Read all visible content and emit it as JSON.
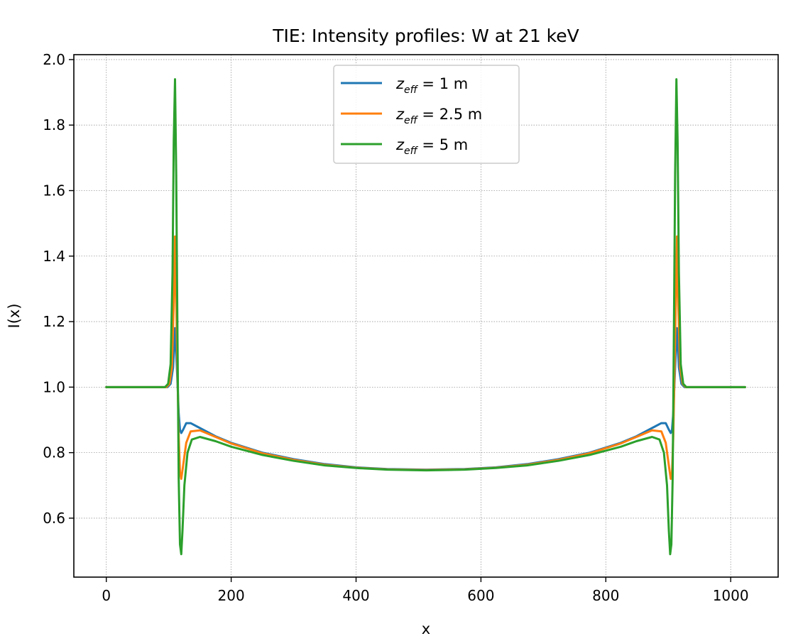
{
  "chart_data": {
    "type": "line",
    "title": "TIE: Intensity profiles: W at 21 keV",
    "xlabel": "x",
    "ylabel": "I(x)",
    "xlim": [
      -52,
      1076
    ],
    "ylim": [
      0.42,
      2.015
    ],
    "xticks": [
      0,
      200,
      400,
      600,
      800,
      1000
    ],
    "xtick_labels": [
      "0",
      "200",
      "400",
      "600",
      "800",
      "1000"
    ],
    "yticks": [
      0.6,
      0.8,
      1.0,
      1.2,
      1.4,
      1.6,
      1.8,
      2.0
    ],
    "ytick_labels": [
      "0.6",
      "0.8",
      "1.0",
      "1.2",
      "1.4",
      "1.6",
      "1.8",
      "2.0"
    ],
    "grid": true,
    "legend_position": "upper center",
    "series": [
      {
        "name": "z_eff = 1 m",
        "legend_main": "z",
        "legend_sub": "eff",
        "legend_rest": " = 1 m",
        "color": "#1f77b4",
        "x": [
          0,
          98,
          103,
          107,
          110,
          113,
          116,
          118,
          120,
          123,
          128,
          135,
          150,
          175,
          200,
          250,
          300,
          350,
          400,
          450,
          512,
          574,
          624,
          674,
          724,
          774,
          824,
          849,
          874,
          889,
          896,
          901,
          904,
          906,
          908,
          911,
          914,
          917,
          921,
          926,
          1023
        ],
        "y": [
          1.0,
          1.0,
          1.01,
          1.06,
          1.18,
          1.06,
          0.92,
          0.87,
          0.86,
          0.87,
          0.89,
          0.89,
          0.875,
          0.85,
          0.83,
          0.8,
          0.78,
          0.765,
          0.755,
          0.75,
          0.748,
          0.75,
          0.755,
          0.765,
          0.78,
          0.8,
          0.83,
          0.85,
          0.875,
          0.89,
          0.89,
          0.87,
          0.86,
          0.87,
          0.92,
          1.06,
          1.18,
          1.06,
          1.01,
          1.0,
          1.0
        ]
      },
      {
        "name": "z_eff = 2.5 m",
        "legend_main": "z",
        "legend_sub": "eff",
        "legend_rest": " = 2.5 m",
        "color": "#ff7f0e",
        "x": [
          0,
          96,
          101,
          105,
          108,
          110,
          113,
          116,
          118,
          120,
          123,
          128,
          135,
          150,
          175,
          200,
          250,
          300,
          350,
          400,
          450,
          512,
          574,
          624,
          674,
          724,
          774,
          824,
          849,
          874,
          889,
          896,
          901,
          904,
          906,
          908,
          911,
          914,
          916,
          919,
          923,
          928,
          1023
        ],
        "y": [
          1.0,
          1.0,
          1.01,
          1.06,
          1.25,
          1.46,
          1.15,
          0.85,
          0.74,
          0.72,
          0.76,
          0.83,
          0.865,
          0.868,
          0.848,
          0.828,
          0.798,
          0.778,
          0.763,
          0.754,
          0.749,
          0.747,
          0.749,
          0.754,
          0.763,
          0.778,
          0.798,
          0.828,
          0.848,
          0.868,
          0.865,
          0.83,
          0.76,
          0.72,
          0.74,
          0.85,
          1.15,
          1.46,
          1.25,
          1.06,
          1.01,
          1.0,
          1.0
        ]
      },
      {
        "name": "z_eff = 5 m",
        "legend_main": "z",
        "legend_sub": "eff",
        "legend_rest": " = 5 m",
        "color": "#2ca02c",
        "x": [
          0,
          94,
          99,
          103,
          106,
          108,
          110,
          112,
          114,
          116,
          118,
          120,
          122,
          125,
          130,
          137,
          150,
          175,
          200,
          250,
          300,
          350,
          400,
          450,
          512,
          574,
          624,
          674,
          724,
          774,
          824,
          849,
          874,
          886,
          893,
          898,
          901,
          903,
          905,
          907,
          909,
          911,
          913,
          915,
          917,
          920,
          924,
          929,
          1023
        ],
        "y": [
          1.0,
          1.0,
          1.01,
          1.07,
          1.35,
          1.75,
          1.94,
          1.65,
          1.15,
          0.72,
          0.52,
          0.49,
          0.56,
          0.7,
          0.8,
          0.84,
          0.848,
          0.835,
          0.818,
          0.793,
          0.775,
          0.761,
          0.753,
          0.748,
          0.746,
          0.748,
          0.753,
          0.761,
          0.775,
          0.793,
          0.818,
          0.835,
          0.848,
          0.84,
          0.8,
          0.7,
          0.56,
          0.49,
          0.52,
          0.72,
          1.15,
          1.65,
          1.94,
          1.75,
          1.35,
          1.07,
          1.01,
          1.0,
          1.0
        ]
      }
    ]
  }
}
